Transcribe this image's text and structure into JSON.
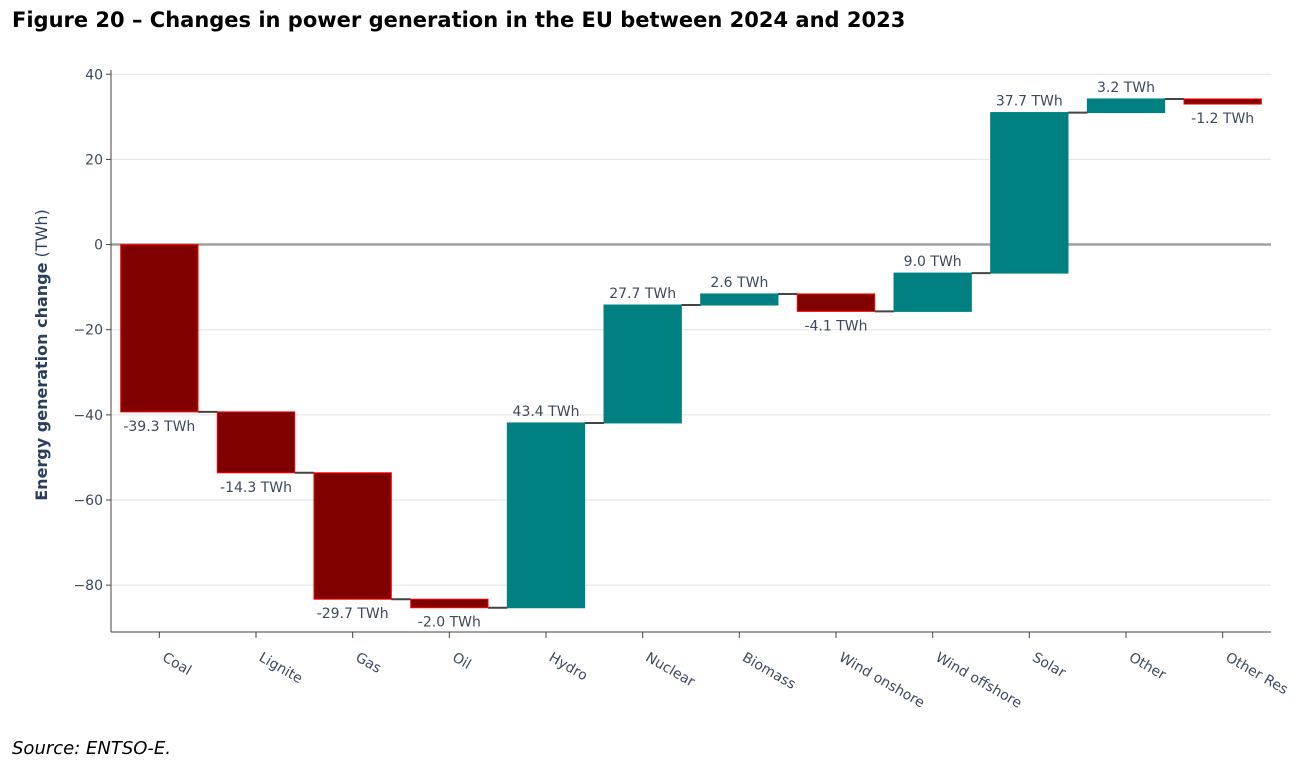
{
  "figure": {
    "title": "Figure 20 – Changes in power generation in the EU between 2024 and 2023",
    "source": "Source: ENTSO-E."
  },
  "chart_data": {
    "type": "waterfall",
    "title": "",
    "xlabel": "",
    "ylabel_main": "Energy generation change",
    "ylabel_unit": " (TWh)",
    "unit": "TWh",
    "ylim": [
      -91,
      41
    ],
    "yticks": [
      40,
      20,
      0,
      -20,
      -40,
      -60,
      -80
    ],
    "ytick_labels": [
      "40",
      "20",
      "0",
      "−20",
      "−40",
      "−60",
      "−80"
    ],
    "grid": true,
    "colors": {
      "decrease": "#800000",
      "decrease_border": "#ff0000",
      "increase": "#008080",
      "increase_border": "#008080"
    },
    "categories": [
      "Coal",
      "Lignite",
      "Gas",
      "Oil",
      "Hydro",
      "Nuclear",
      "Biomass",
      "Wind onshore",
      "Wind offshore",
      "Solar",
      "Other",
      "Other Res"
    ],
    "values": [
      -39.3,
      -14.3,
      -29.7,
      -2.0,
      43.4,
      27.7,
      2.6,
      -4.1,
      9.0,
      37.7,
      3.2,
      -1.2
    ],
    "labels": [
      "-39.3 TWh",
      "-14.3 TWh",
      "-29.7 TWh",
      "-2.0 TWh",
      "43.4 TWh",
      "27.7 TWh",
      "2.6 TWh",
      "-4.1 TWh",
      "9.0 TWh",
      "37.7 TWh",
      "3.2 TWh",
      "-1.2 TWh"
    ]
  }
}
